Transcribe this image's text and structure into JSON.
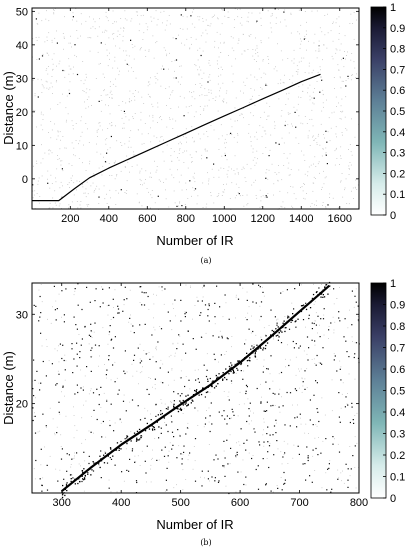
{
  "chart_data": [
    {
      "type": "heatmap",
      "panel": "a",
      "caption": "(a)",
      "xlabel": "Number of IR",
      "ylabel": "Distance (m)",
      "xlim": [
        1,
        1700
      ],
      "ylim": [
        -9,
        51
      ],
      "xticks": [
        200,
        400,
        600,
        800,
        1000,
        1200,
        1400,
        1600
      ],
      "yticks": [
        0,
        10,
        20,
        30,
        40,
        50
      ],
      "colorbar": {
        "range": [
          0,
          1
        ],
        "ticks": [
          0,
          0.1,
          0.2,
          0.3,
          0.4,
          0.5,
          0.6,
          0.7,
          0.8,
          0.9,
          1
        ]
      },
      "trace": {
        "x": [
          1,
          140,
          220,
          300,
          400,
          500,
          600,
          700,
          800,
          900,
          1000,
          1100,
          1200,
          1300,
          1400,
          1500
        ],
        "y": [
          -6.5,
          -6.5,
          -3.0,
          0.3,
          3.2,
          5.8,
          8.4,
          11.0,
          13.6,
          16.2,
          18.8,
          21.3,
          23.9,
          26.4,
          29.0,
          31.2
        ]
      }
    },
    {
      "type": "heatmap",
      "panel": "b",
      "caption": "(b)",
      "xlabel": "Number of IR",
      "ylabel": "Distance (m)",
      "xlim": [
        250,
        800
      ],
      "ylim": [
        10,
        33.5
      ],
      "xticks": [
        300,
        400,
        500,
        600,
        700,
        800
      ],
      "yticks": [
        20,
        30
      ],
      "colorbar": {
        "range": [
          0,
          1
        ],
        "ticks": [
          0,
          0.1,
          0.2,
          0.3,
          0.4,
          0.5,
          0.6,
          0.7,
          0.8,
          0.9,
          1
        ]
      },
      "trace": {
        "x": [
          300,
          350,
          400,
          450,
          500,
          550,
          600,
          650,
          700,
          750
        ],
        "y": [
          10.2,
          12.9,
          15.4,
          17.6,
          19.9,
          22.1,
          24.6,
          27.4,
          30.3,
          33.2
        ]
      }
    }
  ],
  "colors": {
    "low": "#ffffff",
    "mid": "#5a9a9e",
    "high": "#000000"
  }
}
